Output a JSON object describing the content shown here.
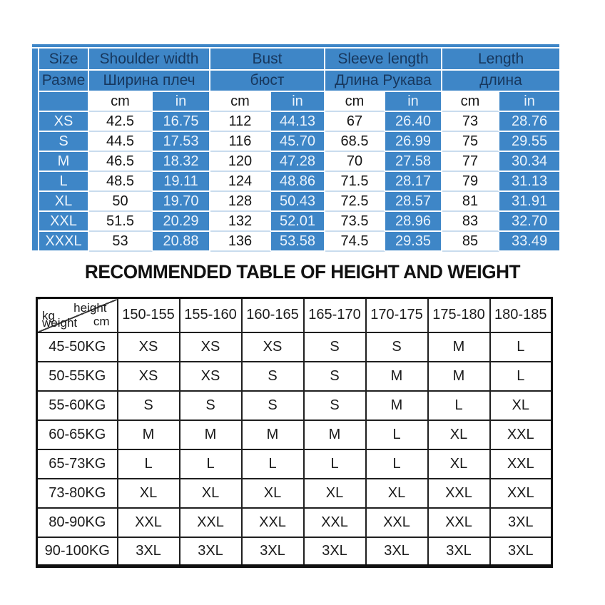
{
  "heading": "RECOMMENDED TABLE OF HEIGHT AND WEIGHT",
  "colors": {
    "table_blue": "#3e86c7",
    "header_text_navy": "#17375d",
    "light_text_on_blue": "#e9f2fb",
    "dark_text": "#161616",
    "rec_table_border": "#1f1f1f"
  },
  "size_table": {
    "columns": [
      {
        "en": "Size",
        "ru": "Разме"
      },
      {
        "en": "Shoulder width",
        "ru": "Ширина плеч"
      },
      {
        "en": "Bust",
        "ru": "бюст"
      },
      {
        "en": "Sleeve length",
        "ru": "Длина Рукава"
      },
      {
        "en": "Length",
        "ru": "длина"
      }
    ],
    "unit_cm": "cm",
    "unit_in": "in",
    "rows": [
      {
        "size": "XS",
        "values": [
          "42.5",
          "16.75",
          "112",
          "44.13",
          "67",
          "26.40",
          "73",
          "28.76"
        ]
      },
      {
        "size": "S",
        "values": [
          "44.5",
          "17.53",
          "116",
          "45.70",
          "68.5",
          "26.99",
          "75",
          "29.55"
        ]
      },
      {
        "size": "M",
        "values": [
          "46.5",
          "18.32",
          "120",
          "47.28",
          "70",
          "27.58",
          "77",
          "30.34"
        ]
      },
      {
        "size": "L",
        "values": [
          "48.5",
          "19.11",
          "124",
          "48.86",
          "71.5",
          "28.17",
          "79",
          "31.13"
        ]
      },
      {
        "size": "XL",
        "values": [
          "50",
          "19.70",
          "128",
          "50.43",
          "72.5",
          "28.57",
          "81",
          "31.91"
        ]
      },
      {
        "size": "XXL",
        "values": [
          "51.5",
          "20.29",
          "132",
          "52.01",
          "73.5",
          "28.96",
          "83",
          "32.70"
        ]
      },
      {
        "size": "XXXL",
        "values": [
          "53",
          "20.88",
          "136",
          "53.58",
          "74.5",
          "29.35",
          "85",
          "33.49"
        ]
      }
    ]
  },
  "recommend_table": {
    "corner": {
      "height_label": "height",
      "cm_label": "cm",
      "kg_label": "kg",
      "weight_label": "weight"
    },
    "height_columns": [
      "150-155",
      "155-160",
      "160-165",
      "165-170",
      "170-175",
      "175-180",
      "180-185"
    ],
    "rows": [
      {
        "weight": "45-50KG",
        "sizes": [
          "XS",
          "XS",
          "XS",
          "S",
          "S",
          "M",
          "L"
        ]
      },
      {
        "weight": "50-55KG",
        "sizes": [
          "XS",
          "XS",
          "S",
          "S",
          "M",
          "M",
          "L"
        ]
      },
      {
        "weight": "55-60KG",
        "sizes": [
          "S",
          "S",
          "S",
          "S",
          "M",
          "L",
          "XL"
        ]
      },
      {
        "weight": "60-65KG",
        "sizes": [
          "M",
          "M",
          "M",
          "M",
          "L",
          "XL",
          "XXL"
        ]
      },
      {
        "weight": "65-73KG",
        "sizes": [
          "L",
          "L",
          "L",
          "L",
          "L",
          "XL",
          "XXL"
        ]
      },
      {
        "weight": "73-80KG",
        "sizes": [
          "XL",
          "XL",
          "XL",
          "XL",
          "XL",
          "XXL",
          "XXL"
        ]
      },
      {
        "weight": "80-90KG",
        "sizes": [
          "XXL",
          "XXL",
          "XXL",
          "XXL",
          "XXL",
          "XXL",
          "3XL"
        ]
      },
      {
        "weight": "90-100KG",
        "sizes": [
          "3XL",
          "3XL",
          "3XL",
          "3XL",
          "3XL",
          "3XL",
          "3XL"
        ]
      }
    ]
  }
}
